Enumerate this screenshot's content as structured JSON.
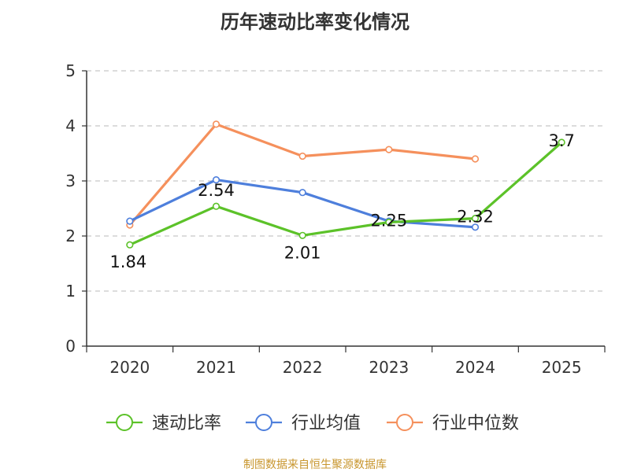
{
  "chart_data": {
    "type": "line",
    "title": "历年速动比率变化情况",
    "xlabel": "",
    "ylabel": "",
    "categories": [
      "2020",
      "2021",
      "2022",
      "2023",
      "2024",
      "2025"
    ],
    "ylim": [
      0,
      5
    ],
    "yticks": [
      0,
      1,
      2,
      3,
      4,
      5
    ],
    "grid": true,
    "legend_position": "bottom",
    "series": [
      {
        "name": "速动比率",
        "color": "#5cc229",
        "values": [
          1.84,
          2.54,
          2.01,
          2.25,
          2.32,
          3.7
        ],
        "labels": [
          "1.84",
          "2.54",
          "2.01",
          "2.25",
          "2.32",
          "3.7"
        ]
      },
      {
        "name": "行业均值",
        "color": "#4e7fdc",
        "values": [
          2.27,
          3.02,
          2.79,
          2.27,
          2.16,
          null
        ]
      },
      {
        "name": "行业中位数",
        "color": "#f5905c",
        "values": [
          2.2,
          4.03,
          3.45,
          3.57,
          3.4,
          null
        ]
      }
    ]
  },
  "source_text": "制图数据来自恒生聚源数据库",
  "source_color": "#c8962e"
}
